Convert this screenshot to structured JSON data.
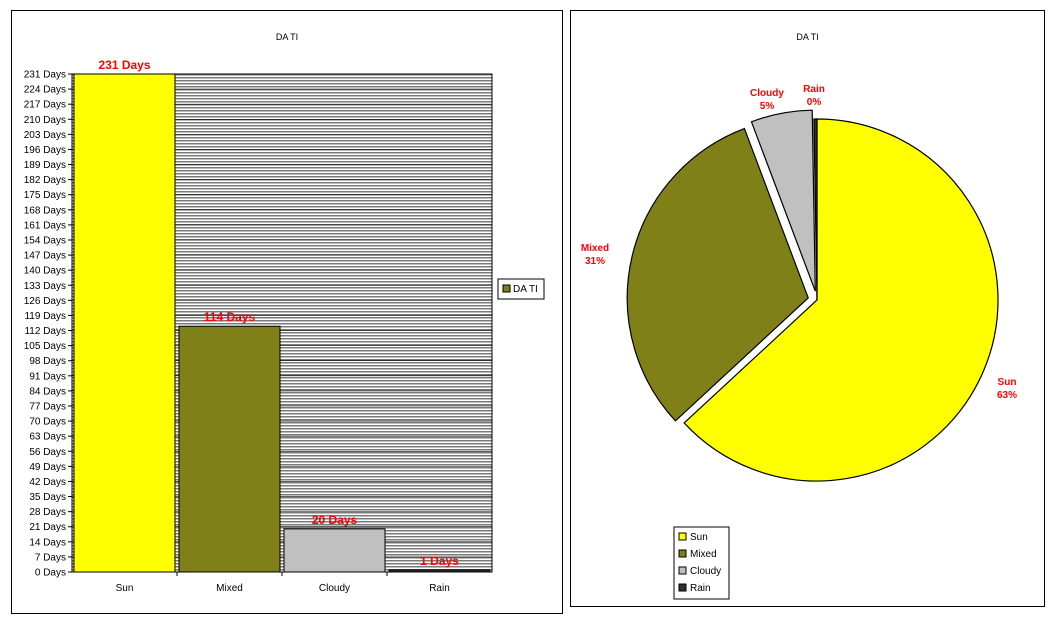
{
  "chart_data": [
    {
      "type": "bar",
      "title": "DA TI",
      "categories": [
        "Sun",
        "Mixed",
        "Cloudy",
        "Rain"
      ],
      "series": [
        {
          "name": "DA TI",
          "values": [
            231,
            114,
            20,
            1
          ],
          "colors": [
            "#ffff00",
            "#808018",
            "#c0c0c0",
            "#303030"
          ]
        }
      ],
      "data_labels": [
        "231 Days",
        "114 Days",
        "20 Days",
        "1 Days"
      ],
      "ylim": [
        0,
        231
      ],
      "y_ticks": [
        0,
        7,
        14,
        21,
        28,
        35,
        42,
        49,
        56,
        63,
        70,
        77,
        84,
        91,
        98,
        105,
        112,
        119,
        126,
        133,
        140,
        147,
        154,
        161,
        168,
        175,
        182,
        189,
        196,
        203,
        210,
        217,
        224,
        231
      ],
      "y_tick_suffix": " Days",
      "legend": "right",
      "grid": true,
      "label_color": "#ff0000"
    },
    {
      "type": "pie",
      "title": "DA TI",
      "categories": [
        "Sun",
        "Mixed",
        "Cloudy",
        "Rain"
      ],
      "values": [
        231,
        114,
        20,
        1
      ],
      "percent_labels": [
        "63%",
        "31%",
        "5%",
        "0%"
      ],
      "colors": [
        "#ffff00",
        "#808018",
        "#c0c0c0",
        "#303030"
      ],
      "legend": "bottom-left",
      "label_color": "#ff0000"
    }
  ]
}
